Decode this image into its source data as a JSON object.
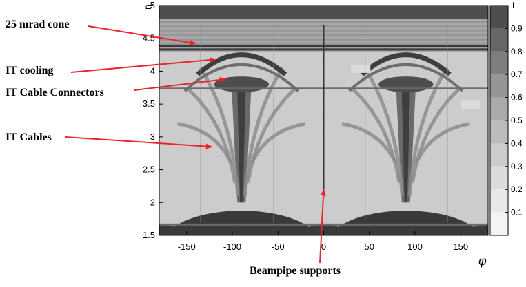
{
  "chart_data": {
    "type": "heatmap",
    "title": "",
    "xlabel": "φ",
    "ylabel": "η",
    "xlim": [
      -180,
      180
    ],
    "ylim": [
      1.5,
      5
    ],
    "x_ticks": [
      -150,
      -100,
      -50,
      0,
      50,
      100,
      150
    ],
    "y_ticks": [
      1.5,
      2,
      2.5,
      3,
      3.5,
      4,
      4.5,
      5
    ],
    "colorbar": {
      "range": [
        0,
        1
      ],
      "ticks": [
        0.1,
        0.2,
        0.3,
        0.4,
        0.5,
        0.6,
        0.7,
        0.8,
        0.9,
        1
      ],
      "levels": [
        "#f4f4f4",
        "#e8e8e8",
        "#dcdcdc",
        "#cccccc",
        "#bcbcbc",
        "#aaaaaa",
        "#969696",
        "#7e7e7e",
        "#666666",
        "#4e4e4e"
      ]
    },
    "regions": {
      "background_value": 0.4,
      "cone_band": {
        "eta_min": 4.8,
        "eta_max": 5.0,
        "value": 0.95
      },
      "upper_band": {
        "eta_min": 4.3,
        "eta_max": 4.8,
        "value": 0.55
      },
      "cooling_lines_eta": [
        4.33,
        4.38
      ],
      "connectors": [
        {
          "phi": -90,
          "eta": 3.8,
          "half_width_phi": 30,
          "half_height_eta": 0.12,
          "value": 0.95
        },
        {
          "phi": 90,
          "eta": 3.8,
          "half_width_phi": 30,
          "half_height_eta": 0.12,
          "value": 0.95
        }
      ],
      "cable_columns_phi": [
        -90,
        90
      ],
      "base_domes": [
        {
          "phi": -90,
          "eta_top": 2.0
        },
        {
          "phi": 90,
          "eta_top": 2.0
        },
        {
          "phi": 0,
          "eta_top": 1.72
        },
        {
          "phi": -180,
          "eta_top": 1.72
        },
        {
          "phi": 180,
          "eta_top": 1.72
        }
      ],
      "beampipe_support_phi": 0
    }
  },
  "annotations": [
    {
      "label": "25 mrad cone",
      "target_phi": -140,
      "target_eta": 4.42
    },
    {
      "label": "IT cooling",
      "target_phi": -118,
      "target_eta": 4.18
    },
    {
      "label": "IT Cable Connectors",
      "target_phi": -107,
      "target_eta": 3.88
    },
    {
      "label": "IT Cables",
      "target_phi": -122,
      "target_eta": 2.85
    },
    {
      "label": "Beampipe supports",
      "target_phi": 0,
      "target_eta": 2.2
    }
  ],
  "colors": {
    "arrow": "#e8262a",
    "axis": "#000000",
    "dark": "#4a4a4a",
    "background": "#bcbcbc"
  }
}
